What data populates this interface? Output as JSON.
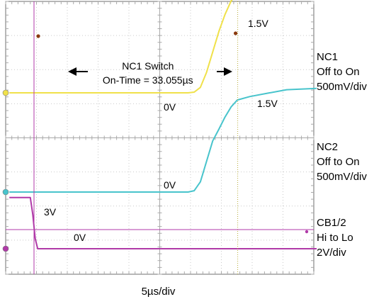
{
  "chart_data": {
    "type": "line",
    "x_unit": "µs",
    "x_per_div": 5,
    "x_divisions": 10,
    "y_divisions": 8,
    "grid": true,
    "background": "#ffffff",
    "grid_color": "#c9c9c9",
    "marker_color": "#b8ad3a",
    "annotation": {
      "lines": [
        "NC1 Switch",
        "On-Time = 33.055µs"
      ],
      "interval": [
        0,
        33.055
      ],
      "interval_unit": "µs"
    },
    "level_labels": [
      "1.5V",
      "0V",
      "1.5V",
      "0V",
      "3V",
      "0V"
    ],
    "time_base": "5µs/div",
    "series": [
      {
        "channel_label": [
          "NC1",
          "Off to On",
          "500mV/div"
        ],
        "color": "#f0e14a",
        "scale_V_per_div": 0.5,
        "transition": "Off to On",
        "x": [
          -4,
          0,
          5,
          10,
          15,
          20,
          25,
          26,
          27,
          28,
          29,
          30,
          31,
          32,
          33,
          34,
          35,
          40,
          45,
          46
        ],
        "y": [
          0,
          0,
          0,
          0,
          0,
          0,
          0,
          0.01,
          0.08,
          0.3,
          0.6,
          0.9,
          1.15,
          1.35,
          1.45,
          1.48,
          1.5,
          1.52,
          1.55,
          1.55
        ]
      },
      {
        "channel_label": [
          "NC2",
          "Off to On",
          "500mV/div"
        ],
        "color": "#48c4cc",
        "scale_V_per_div": 0.5,
        "transition": "Off to On",
        "x": [
          -4,
          0,
          5,
          10,
          15,
          20,
          25,
          26,
          27,
          28,
          29,
          30,
          31,
          32,
          33,
          35,
          38,
          41,
          46
        ],
        "y": [
          0,
          0,
          0,
          0,
          0,
          0,
          0,
          0.02,
          0.15,
          0.45,
          0.75,
          0.92,
          1.1,
          1.25,
          1.35,
          1.4,
          1.45,
          1.5,
          1.52
        ]
      },
      {
        "channel_label": [
          "CB1/2",
          "Hi to Lo",
          "2V/div"
        ],
        "color": "#b03aa8",
        "scale_V_per_div": 2,
        "transition": "Hi to Lo",
        "x": [
          -4,
          -0.6,
          -0.2,
          0.2,
          0.6,
          46
        ],
        "y": [
          3,
          3,
          2,
          0.6,
          0,
          0
        ]
      }
    ]
  }
}
